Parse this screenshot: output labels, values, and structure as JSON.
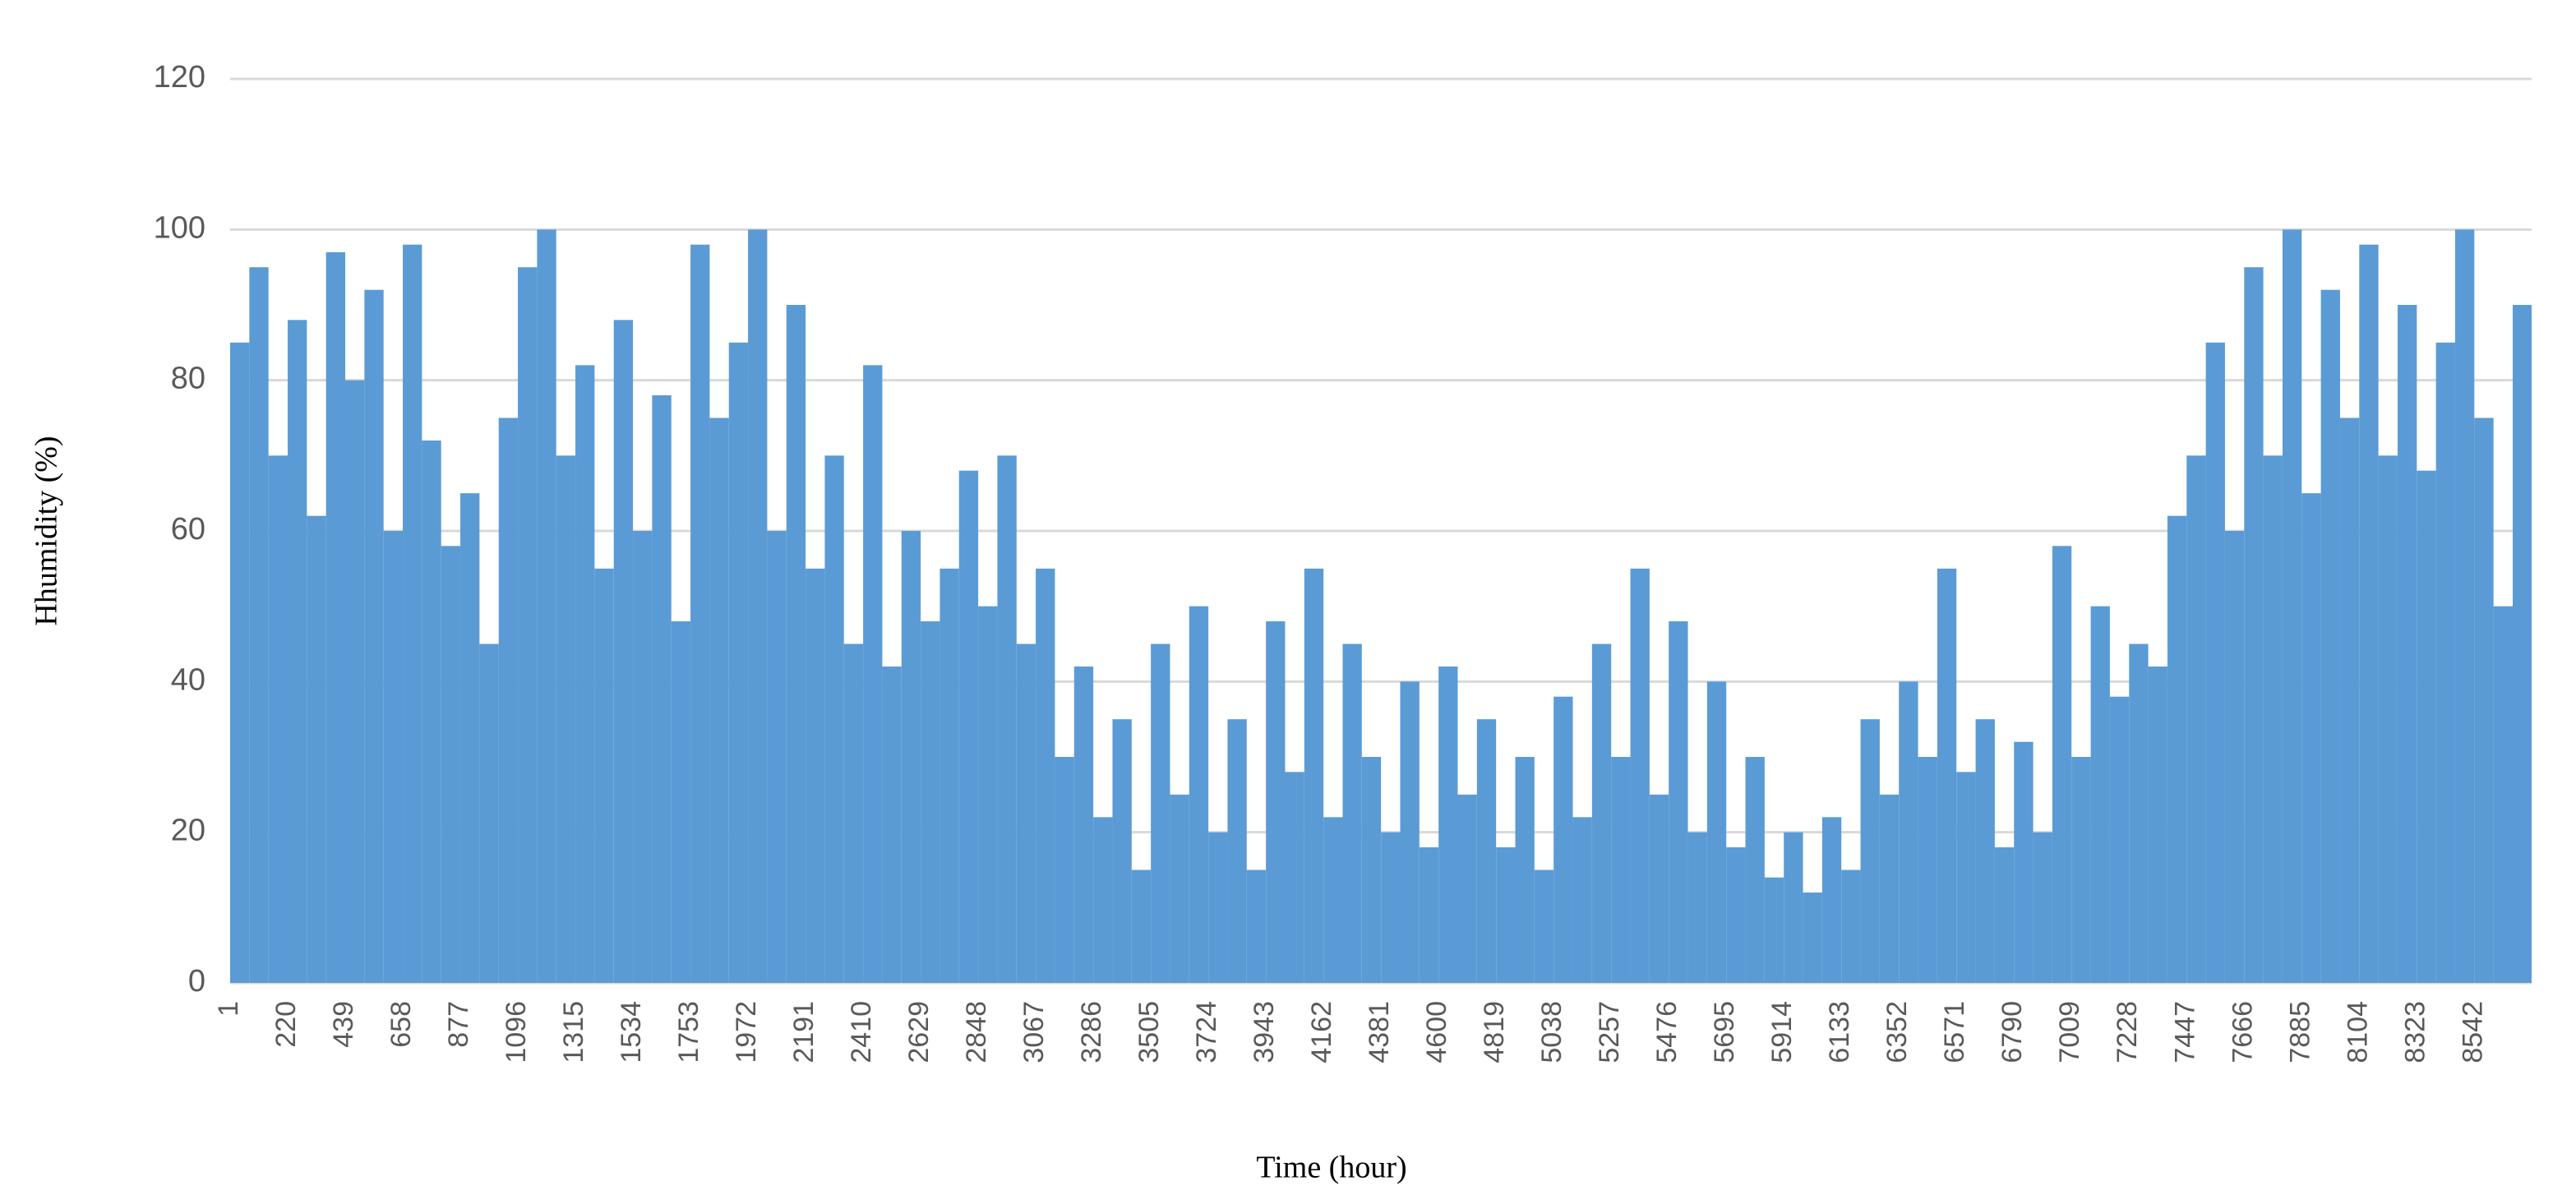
{
  "chart_data": {
    "type": "bar",
    "x_label": "Time (hour)",
    "y_label": "Hhumidity (%)",
    "x": [
      1,
      74,
      147,
      220,
      293,
      366,
      439,
      512,
      585,
      658,
      731,
      804,
      877,
      950,
      1023,
      1096,
      1169,
      1242,
      1315,
      1388,
      1461,
      1534,
      1607,
      1680,
      1753,
      1826,
      1899,
      1972,
      2045,
      2118,
      2191,
      2264,
      2337,
      2410,
      2483,
      2556,
      2629,
      2702,
      2775,
      2848,
      2921,
      2994,
      3067,
      3140,
      3213,
      3286,
      3359,
      3432,
      3505,
      3578,
      3651,
      3724,
      3797,
      3870,
      3943,
      4016,
      4089,
      4162,
      4235,
      4308,
      4381,
      4454,
      4527,
      4600,
      4673,
      4746,
      4819,
      4892,
      4965,
      5038,
      5111,
      5184,
      5257,
      5330,
      5403,
      5476,
      5549,
      5622,
      5695,
      5768,
      5841,
      5914,
      5987,
      6060,
      6133,
      6206,
      6279,
      6352,
      6425,
      6498,
      6571,
      6644,
      6717,
      6790,
      6863,
      6936,
      7009,
      7082,
      7155,
      7228,
      7301,
      7374,
      7447,
      7520,
      7593,
      7666,
      7739,
      7812,
      7885,
      7958,
      8031,
      8104,
      8177,
      8250,
      8323,
      8396,
      8469,
      8542,
      8615,
      8688
    ],
    "values": [
      85,
      95,
      70,
      88,
      62,
      97,
      80,
      92,
      60,
      98,
      72,
      58,
      65,
      45,
      75,
      95,
      100,
      70,
      82,
      55,
      88,
      60,
      78,
      48,
      98,
      75,
      85,
      100,
      60,
      90,
      55,
      70,
      45,
      82,
      42,
      60,
      48,
      55,
      68,
      50,
      70,
      45,
      55,
      30,
      42,
      22,
      35,
      15,
      45,
      25,
      50,
      20,
      35,
      15,
      48,
      28,
      55,
      22,
      45,
      30,
      20,
      40,
      18,
      42,
      25,
      35,
      18,
      30,
      15,
      38,
      22,
      45,
      30,
      55,
      25,
      48,
      20,
      40,
      18,
      30,
      14,
      20,
      12,
      22,
      15,
      35,
      25,
      40,
      30,
      55,
      28,
      35,
      18,
      32,
      20,
      58,
      30,
      50,
      38,
      45,
      42,
      62,
      70,
      85,
      60,
      95,
      70,
      100,
      65,
      92,
      75,
      98,
      70,
      90,
      68,
      85,
      100,
      75,
      50,
      90
    ],
    "color": "#5b9bd5",
    "xlim": [
      1,
      8760
    ],
    "xticks": [
      1,
      220,
      439,
      658,
      877,
      1096,
      1315,
      1534,
      1753,
      1972,
      2191,
      2410,
      2629,
      2848,
      3067,
      3286,
      3505,
      3724,
      3943,
      4162,
      4381,
      4600,
      4819,
      5038,
      5257,
      5476,
      5695,
      5914,
      6133,
      6352,
      6571,
      6790,
      7009,
      7228,
      7447,
      7666,
      7885,
      8104,
      8323,
      8542
    ],
    "ylim": [
      0,
      120
    ],
    "yticks": [
      0,
      20,
      40,
      60,
      80,
      100,
      120
    ],
    "grid": true
  }
}
